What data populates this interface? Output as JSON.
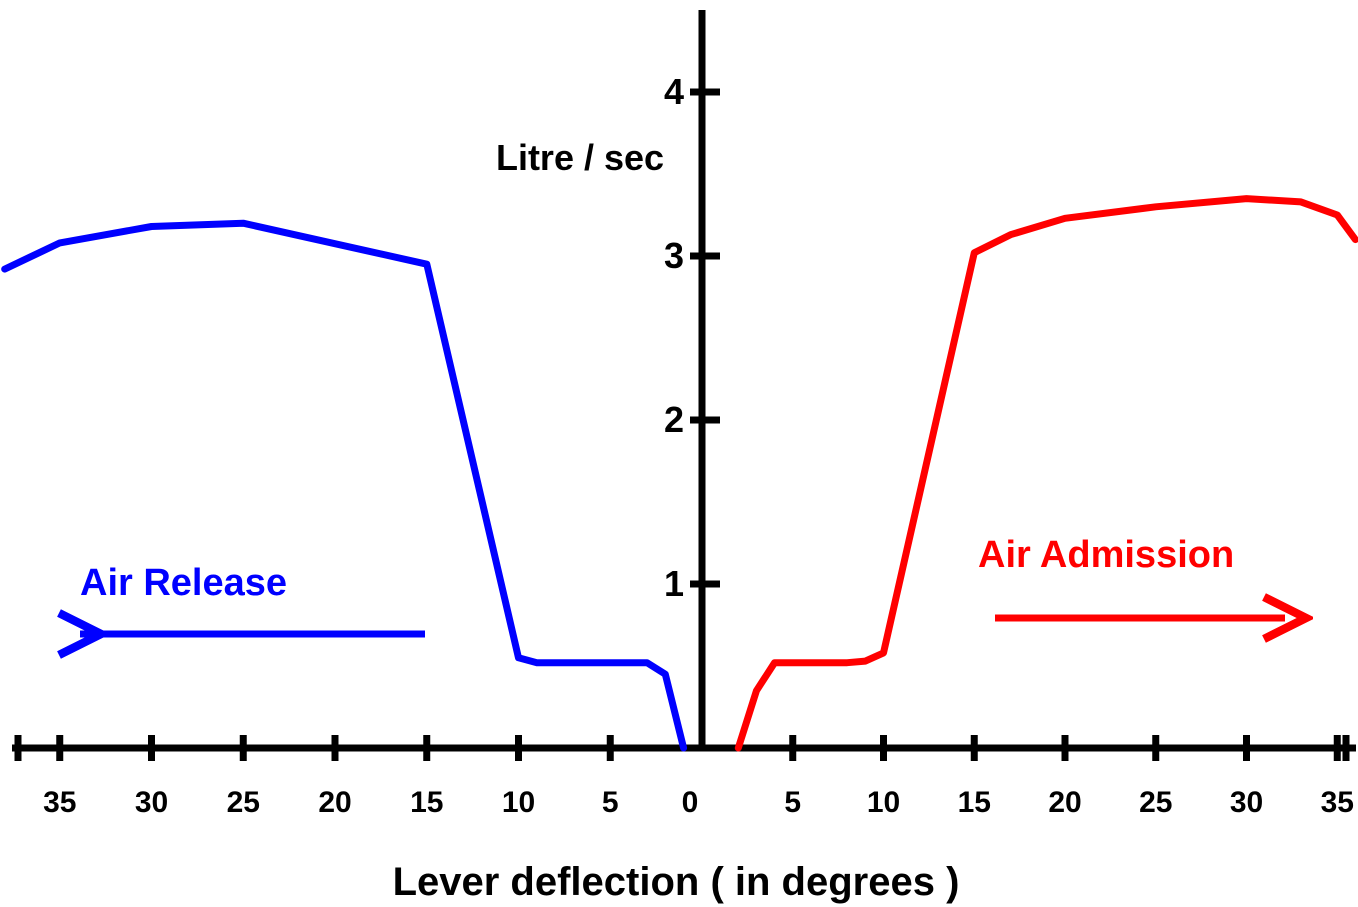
{
  "chart_data": {
    "type": "line",
    "title": "",
    "xlabel": "Lever deflection ( in degrees )",
    "ylabel": "Litre / sec",
    "ylim": [
      0,
      4.5
    ],
    "y_ticks": [
      "1",
      "2",
      "3",
      "4"
    ],
    "x_ticks_left": [
      "35",
      "30",
      "25",
      "20",
      "15",
      "10",
      "5"
    ],
    "x_tick_zero": "0",
    "x_ticks_right": [
      "5",
      "10",
      "15",
      "20",
      "25",
      "30",
      "35"
    ],
    "colors": {
      "release": "#0000ff",
      "admission": "#ff0000",
      "axes": "#000000"
    },
    "series": [
      {
        "name": "Air Release",
        "side": "left",
        "direction": "left-arrow",
        "x": [
          1,
          2,
          3,
          9,
          10,
          15,
          25,
          30,
          35,
          38
        ],
        "y": [
          0,
          0.45,
          0.52,
          0.52,
          0.55,
          2.95,
          3.2,
          3.18,
          3.08,
          2.92
        ]
      },
      {
        "name": "Air Admission",
        "side": "right",
        "direction": "right-arrow",
        "x": [
          2,
          3,
          4,
          8,
          9,
          10,
          15,
          17,
          20,
          25,
          30,
          33,
          35,
          36
        ],
        "y": [
          0,
          0.35,
          0.52,
          0.52,
          0.53,
          0.58,
          3.02,
          3.13,
          3.23,
          3.3,
          3.35,
          3.33,
          3.25,
          3.1
        ]
      }
    ]
  }
}
